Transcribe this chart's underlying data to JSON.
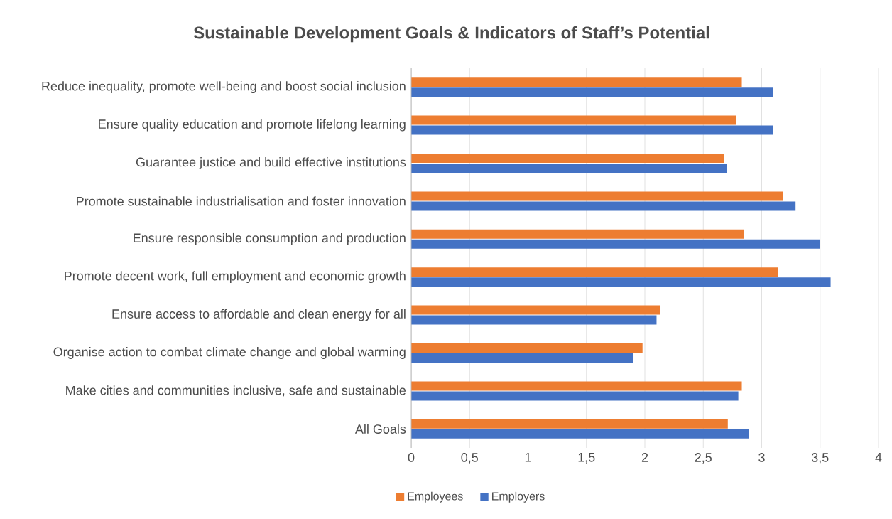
{
  "chart_data": {
    "type": "bar",
    "orientation": "horizontal",
    "title": "Sustainable Development Goals & Indicators of Staff’s Potential",
    "categories": [
      "Reduce inequality, promote well-being and boost social inclusion",
      "Ensure quality education and promote lifelong learning",
      "Guarantee justice and build effective institutions",
      "Promote sustainable industrialisation and foster innovation",
      "Ensure responsible consumption and production",
      "Promote decent work, full employment and economic growth",
      "Ensure access to affordable and clean energy for all",
      "Organise action to combat climate change and global warming",
      "Make cities and communities inclusive, safe and sustainable",
      "All Goals"
    ],
    "series": [
      {
        "name": "Employees",
        "color": "#ed7d31",
        "values": [
          2.83,
          2.78,
          2.68,
          3.18,
          2.85,
          3.14,
          2.13,
          1.98,
          2.83,
          2.71
        ]
      },
      {
        "name": "Employers",
        "color": "#4472c4",
        "values": [
          3.1,
          3.1,
          2.7,
          3.29,
          3.5,
          3.59,
          2.1,
          1.9,
          2.8,
          2.89
        ]
      }
    ],
    "xlim": [
      0,
      4
    ],
    "xticks": [
      0,
      {
        "value": 0.5,
        "label": "0,5"
      },
      1,
      {
        "value": 1.5,
        "label": "1,5"
      },
      2,
      {
        "value": 2.5,
        "label": "2,5"
      },
      3,
      {
        "value": 3.5,
        "label": "3,5"
      },
      4
    ],
    "grid": "x",
    "legend": "bottom"
  }
}
